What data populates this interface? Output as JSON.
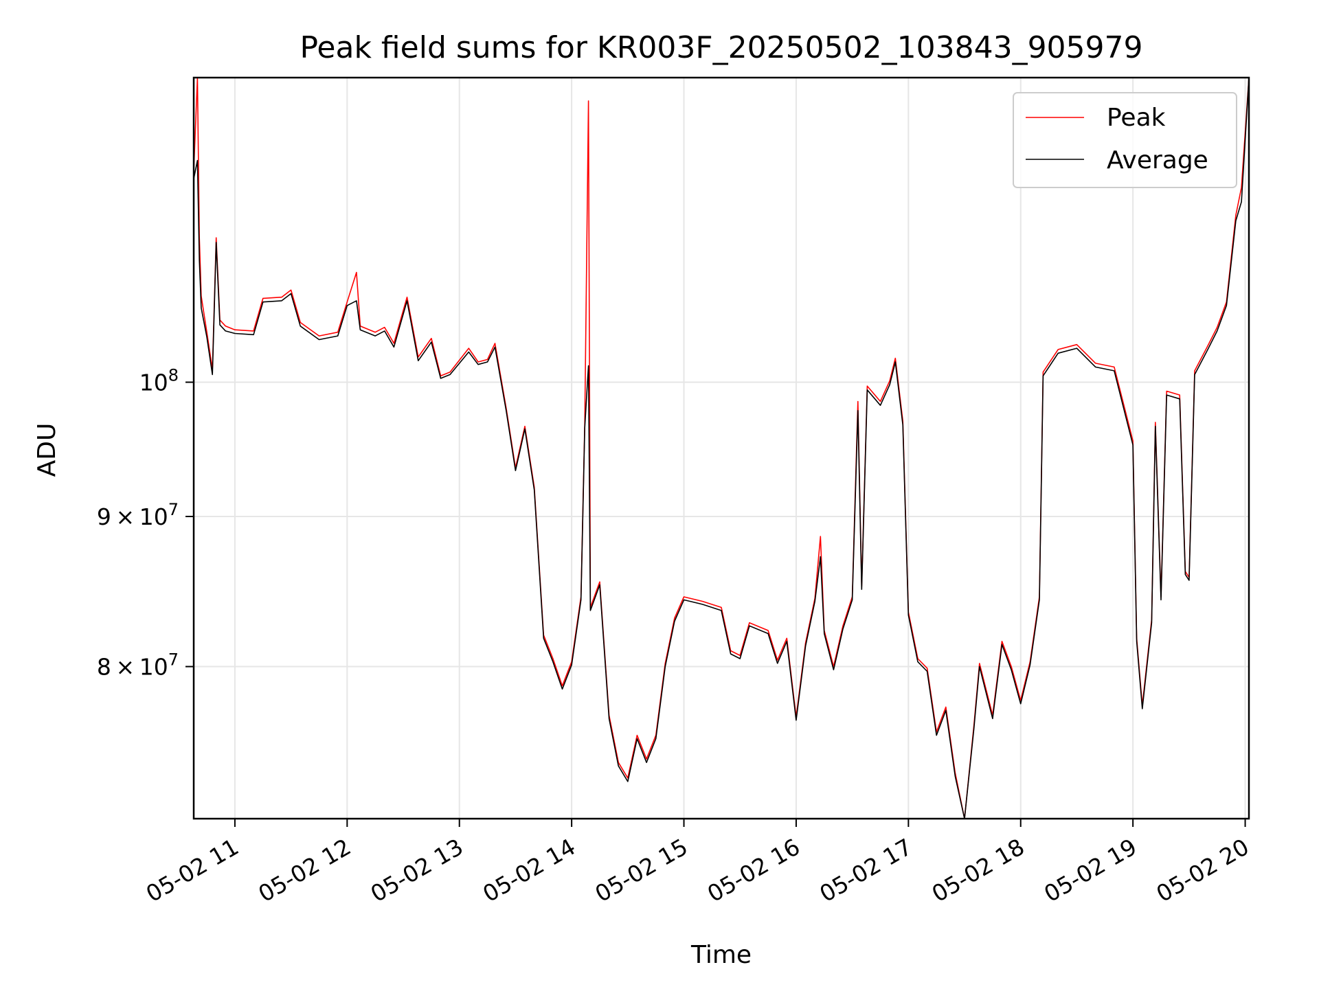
{
  "chart_data": {
    "type": "line",
    "title": "Peak field sums for KR003F_20250502_103843_905979",
    "xlabel": "Time",
    "ylabel": "ADU",
    "yscale": "log",
    "ylim": [
      71000000,
      127000000
    ],
    "xlim": [
      "2025-05-02 10:38",
      "2025-05-02 20:02"
    ],
    "grid": true,
    "legend_position": "top-right",
    "x_ticks": [
      "2025-05-02 11:00",
      "2025-05-02 12:00",
      "2025-05-02 13:00",
      "2025-05-02 14:00",
      "2025-05-02 15:00",
      "2025-05-02 16:00",
      "2025-05-02 17:00",
      "2025-05-02 18:00",
      "2025-05-02 19:00",
      "2025-05-02 20:00"
    ],
    "x_tick_labels": [
      "05-02 11",
      "05-02 12",
      "05-02 13",
      "05-02 14",
      "05-02 15",
      "05-02 16",
      "05-02 17",
      "05-02 18",
      "05-02 19",
      "05-02 20"
    ],
    "y_ticks": [
      {
        "value": 100000000,
        "base": "10",
        "exp": "8",
        "mant": ""
      },
      {
        "value": 90000000,
        "base": "10",
        "exp": "7",
        "mant": "9"
      },
      {
        "value": 80000000,
        "base": "10",
        "exp": "7",
        "mant": "8"
      }
    ],
    "series": [
      {
        "name": "Peak",
        "color": "#ff0000",
        "points": [
          [
            "2025-05-02 10:38",
            118000000
          ],
          [
            "2025-05-02 10:40",
            127000000
          ],
          [
            "2025-05-02 10:41",
            112000000
          ],
          [
            "2025-05-02 10:42",
            107000000
          ],
          [
            "2025-05-02 10:45",
            104000000
          ],
          [
            "2025-05-02 10:48",
            101000000
          ],
          [
            "2025-05-02 10:50",
            112000000
          ],
          [
            "2025-05-02 10:52",
            105000000
          ],
          [
            "2025-05-02 10:55",
            104500000
          ],
          [
            "2025-05-02 11:00",
            104200000
          ],
          [
            "2025-05-02 11:10",
            104100000
          ],
          [
            "2025-05-02 11:15",
            106800000
          ],
          [
            "2025-05-02 11:25",
            106900000
          ],
          [
            "2025-05-02 11:30",
            107500000
          ],
          [
            "2025-05-02 11:35",
            104800000
          ],
          [
            "2025-05-02 11:45",
            103700000
          ],
          [
            "2025-05-02 11:55",
            104000000
          ],
          [
            "2025-05-02 12:00",
            106500000
          ],
          [
            "2025-05-02 12:05",
            109000000
          ],
          [
            "2025-05-02 12:07",
            104500000
          ],
          [
            "2025-05-02 12:15",
            104000000
          ],
          [
            "2025-05-02 12:20",
            104400000
          ],
          [
            "2025-05-02 12:25",
            103100000
          ],
          [
            "2025-05-02 12:32",
            106900000
          ],
          [
            "2025-05-02 12:38",
            102000000
          ],
          [
            "2025-05-02 12:45",
            103500000
          ],
          [
            "2025-05-02 12:50",
            100500000
          ],
          [
            "2025-05-02 12:55",
            100800000
          ],
          [
            "2025-05-02 13:05",
            102700000
          ],
          [
            "2025-05-02 13:10",
            101600000
          ],
          [
            "2025-05-02 13:15",
            101800000
          ],
          [
            "2025-05-02 13:19",
            103100000
          ],
          [
            "2025-05-02 13:25",
            98000000
          ],
          [
            "2025-05-02 13:30",
            93500000
          ],
          [
            "2025-05-02 13:35",
            96600000
          ],
          [
            "2025-05-02 13:40",
            92100000
          ],
          [
            "2025-05-02 13:45",
            82000000
          ],
          [
            "2025-05-02 13:50",
            80500000
          ],
          [
            "2025-05-02 13:55",
            78800000
          ],
          [
            "2025-05-02 14:00",
            80300000
          ],
          [
            "2025-05-02 14:05",
            84500000
          ],
          [
            "2025-05-02 14:07",
            96800000
          ],
          [
            "2025-05-02 14:09",
            124700000
          ],
          [
            "2025-05-02 14:10",
            83800000
          ],
          [
            "2025-05-02 14:15",
            85500000
          ],
          [
            "2025-05-02 14:20",
            77000000
          ],
          [
            "2025-05-02 14:25",
            74200000
          ],
          [
            "2025-05-02 14:30",
            73300000
          ],
          [
            "2025-05-02 14:35",
            75800000
          ],
          [
            "2025-05-02 14:40",
            74400000
          ],
          [
            "2025-05-02 14:45",
            75800000
          ],
          [
            "2025-05-02 14:50",
            80200000
          ],
          [
            "2025-05-02 14:55",
            83100000
          ],
          [
            "2025-05-02 15:00",
            84500000
          ],
          [
            "2025-05-02 15:10",
            84200000
          ],
          [
            "2025-05-02 15:20",
            83800000
          ],
          [
            "2025-05-02 15:25",
            81000000
          ],
          [
            "2025-05-02 15:30",
            80700000
          ],
          [
            "2025-05-02 15:35",
            82800000
          ],
          [
            "2025-05-02 15:45",
            82300000
          ],
          [
            "2025-05-02 15:50",
            80400000
          ],
          [
            "2025-05-02 15:55",
            81800000
          ],
          [
            "2025-05-02 16:00",
            76900000
          ],
          [
            "2025-05-02 16:05",
            81500000
          ],
          [
            "2025-05-02 16:10",
            84400000
          ],
          [
            "2025-05-02 16:13",
            88600000
          ],
          [
            "2025-05-02 16:15",
            82300000
          ],
          [
            "2025-05-02 16:20",
            80000000
          ],
          [
            "2025-05-02 16:25",
            82600000
          ],
          [
            "2025-05-02 16:30",
            84500000
          ],
          [
            "2025-05-02 16:33",
            98500000
          ],
          [
            "2025-05-02 16:35",
            85200000
          ],
          [
            "2025-05-02 16:38",
            99700000
          ],
          [
            "2025-05-02 16:45",
            98500000
          ],
          [
            "2025-05-02 16:50",
            100100000
          ],
          [
            "2025-05-02 16:53",
            101900000
          ],
          [
            "2025-05-02 16:57",
            97000000
          ],
          [
            "2025-05-02 17:00",
            83500000
          ],
          [
            "2025-05-02 17:05",
            80500000
          ],
          [
            "2025-05-02 17:10",
            79900000
          ],
          [
            "2025-05-02 17:15",
            76000000
          ],
          [
            "2025-05-02 17:20",
            77500000
          ],
          [
            "2025-05-02 17:25",
            73600000
          ],
          [
            "2025-05-02 17:30",
            71000000
          ],
          [
            "2025-05-02 17:35",
            76400000
          ],
          [
            "2025-05-02 17:38",
            80200000
          ],
          [
            "2025-05-02 17:45",
            77000000
          ],
          [
            "2025-05-02 17:50",
            81600000
          ],
          [
            "2025-05-02 17:55",
            80000000
          ],
          [
            "2025-05-02 18:00",
            77900000
          ],
          [
            "2025-05-02 18:05",
            80300000
          ],
          [
            "2025-05-02 18:10",
            84500000
          ],
          [
            "2025-05-02 18:12",
            100800000
          ],
          [
            "2025-05-02 18:20",
            102600000
          ],
          [
            "2025-05-02 18:30",
            103000000
          ],
          [
            "2025-05-02 18:40",
            101500000
          ],
          [
            "2025-05-02 18:50",
            101200000
          ],
          [
            "2025-05-02 19:00",
            95500000
          ],
          [
            "2025-05-02 19:02",
            81800000
          ],
          [
            "2025-05-02 19:05",
            77600000
          ],
          [
            "2025-05-02 19:10",
            83000000
          ],
          [
            "2025-05-02 19:12",
            96900000
          ],
          [
            "2025-05-02 19:15",
            84500000
          ],
          [
            "2025-05-02 19:18",
            99300000
          ],
          [
            "2025-05-02 19:25",
            99000000
          ],
          [
            "2025-05-02 19:28",
            86200000
          ],
          [
            "2025-05-02 19:30",
            85800000
          ],
          [
            "2025-05-02 19:33",
            100900000
          ],
          [
            "2025-05-02 19:40",
            102900000
          ],
          [
            "2025-05-02 19:45",
            104400000
          ],
          [
            "2025-05-02 19:50",
            106500000
          ],
          [
            "2025-05-02 19:55",
            114000000
          ],
          [
            "2025-05-02 19:58",
            116500000
          ],
          [
            "2025-05-02 20:02",
            127000000
          ]
        ]
      },
      {
        "name": "Average",
        "color": "#000000",
        "points": [
          [
            "2025-05-02 10:38",
            117300000
          ],
          [
            "2025-05-02 10:40",
            119000000
          ],
          [
            "2025-05-02 10:41",
            110000000
          ],
          [
            "2025-05-02 10:42",
            106000000
          ],
          [
            "2025-05-02 10:45",
            103600000
          ],
          [
            "2025-05-02 10:48",
            100600000
          ],
          [
            "2025-05-02 10:50",
            111600000
          ],
          [
            "2025-05-02 10:52",
            104600000
          ],
          [
            "2025-05-02 10:55",
            104100000
          ],
          [
            "2025-05-02 11:00",
            103900000
          ],
          [
            "2025-05-02 11:10",
            103800000
          ],
          [
            "2025-05-02 11:15",
            106500000
          ],
          [
            "2025-05-02 11:25",
            106600000
          ],
          [
            "2025-05-02 11:30",
            107200000
          ],
          [
            "2025-05-02 11:35",
            104500000
          ],
          [
            "2025-05-02 11:45",
            103400000
          ],
          [
            "2025-05-02 11:55",
            103700000
          ],
          [
            "2025-05-02 12:00",
            106200000
          ],
          [
            "2025-05-02 12:05",
            106600000
          ],
          [
            "2025-05-02 12:07",
            104200000
          ],
          [
            "2025-05-02 12:15",
            103700000
          ],
          [
            "2025-05-02 12:20",
            104100000
          ],
          [
            "2025-05-02 12:25",
            102800000
          ],
          [
            "2025-05-02 12:32",
            106600000
          ],
          [
            "2025-05-02 12:38",
            101700000
          ],
          [
            "2025-05-02 12:45",
            103200000
          ],
          [
            "2025-05-02 12:50",
            100300000
          ],
          [
            "2025-05-02 12:55",
            100600000
          ],
          [
            "2025-05-02 13:05",
            102400000
          ],
          [
            "2025-05-02 13:10",
            101400000
          ],
          [
            "2025-05-02 13:15",
            101600000
          ],
          [
            "2025-05-02 13:19",
            102800000
          ],
          [
            "2025-05-02 13:25",
            97800000
          ],
          [
            "2025-05-02 13:30",
            93300000
          ],
          [
            "2025-05-02 13:35",
            96400000
          ],
          [
            "2025-05-02 13:40",
            91900000
          ],
          [
            "2025-05-02 13:45",
            81800000
          ],
          [
            "2025-05-02 13:50",
            80300000
          ],
          [
            "2025-05-02 13:55",
            78600000
          ],
          [
            "2025-05-02 14:00",
            80100000
          ],
          [
            "2025-05-02 14:05",
            84300000
          ],
          [
            "2025-05-02 14:07",
            96500000
          ],
          [
            "2025-05-02 14:09",
            101300000
          ],
          [
            "2025-05-02 14:10",
            83600000
          ],
          [
            "2025-05-02 14:15",
            85300000
          ],
          [
            "2025-05-02 14:20",
            76800000
          ],
          [
            "2025-05-02 14:25",
            74000000
          ],
          [
            "2025-05-02 14:30",
            73100000
          ],
          [
            "2025-05-02 14:35",
            75600000
          ],
          [
            "2025-05-02 14:40",
            74200000
          ],
          [
            "2025-05-02 14:45",
            75600000
          ],
          [
            "2025-05-02 14:50",
            80000000
          ],
          [
            "2025-05-02 14:55",
            82900000
          ],
          [
            "2025-05-02 15:00",
            84300000
          ],
          [
            "2025-05-02 15:10",
            84000000
          ],
          [
            "2025-05-02 15:20",
            83600000
          ],
          [
            "2025-05-02 15:25",
            80800000
          ],
          [
            "2025-05-02 15:30",
            80500000
          ],
          [
            "2025-05-02 15:35",
            82600000
          ],
          [
            "2025-05-02 15:45",
            82100000
          ],
          [
            "2025-05-02 15:50",
            80200000
          ],
          [
            "2025-05-02 15:55",
            81600000
          ],
          [
            "2025-05-02 16:00",
            76700000
          ],
          [
            "2025-05-02 16:05",
            81300000
          ],
          [
            "2025-05-02 16:10",
            84200000
          ],
          [
            "2025-05-02 16:13",
            87200000
          ],
          [
            "2025-05-02 16:15",
            82100000
          ],
          [
            "2025-05-02 16:20",
            79800000
          ],
          [
            "2025-05-02 16:25",
            82400000
          ],
          [
            "2025-05-02 16:30",
            84300000
          ],
          [
            "2025-05-02 16:33",
            97800000
          ],
          [
            "2025-05-02 16:35",
            85000000
          ],
          [
            "2025-05-02 16:38",
            99400000
          ],
          [
            "2025-05-02 16:45",
            98200000
          ],
          [
            "2025-05-02 16:50",
            99800000
          ],
          [
            "2025-05-02 16:53",
            101600000
          ],
          [
            "2025-05-02 16:57",
            96700000
          ],
          [
            "2025-05-02 17:00",
            83300000
          ],
          [
            "2025-05-02 17:05",
            80300000
          ],
          [
            "2025-05-02 17:10",
            79700000
          ],
          [
            "2025-05-02 17:15",
            75800000
          ],
          [
            "2025-05-02 17:20",
            77300000
          ],
          [
            "2025-05-02 17:25",
            73400000
          ],
          [
            "2025-05-02 17:30",
            71000000
          ],
          [
            "2025-05-02 17:35",
            76200000
          ],
          [
            "2025-05-02 17:38",
            80000000
          ],
          [
            "2025-05-02 17:45",
            76800000
          ],
          [
            "2025-05-02 17:50",
            81400000
          ],
          [
            "2025-05-02 17:55",
            79800000
          ],
          [
            "2025-05-02 18:00",
            77700000
          ],
          [
            "2025-05-02 18:05",
            80100000
          ],
          [
            "2025-05-02 18:10",
            84300000
          ],
          [
            "2025-05-02 18:12",
            100500000
          ],
          [
            "2025-05-02 18:20",
            102300000
          ],
          [
            "2025-05-02 18:30",
            102700000
          ],
          [
            "2025-05-02 18:40",
            101200000
          ],
          [
            "2025-05-02 18:50",
            100900000
          ],
          [
            "2025-05-02 19:00",
            95200000
          ],
          [
            "2025-05-02 19:02",
            81600000
          ],
          [
            "2025-05-02 19:05",
            77400000
          ],
          [
            "2025-05-02 19:10",
            82800000
          ],
          [
            "2025-05-02 19:12",
            96600000
          ],
          [
            "2025-05-02 19:15",
            84300000
          ],
          [
            "2025-05-02 19:18",
            99000000
          ],
          [
            "2025-05-02 19:25",
            98700000
          ],
          [
            "2025-05-02 19:28",
            86000000
          ],
          [
            "2025-05-02 19:30",
            85600000
          ],
          [
            "2025-05-02 19:33",
            100600000
          ],
          [
            "2025-05-02 19:40",
            102600000
          ],
          [
            "2025-05-02 19:45",
            104100000
          ],
          [
            "2025-05-02 19:50",
            106200000
          ],
          [
            "2025-05-02 19:55",
            113500000
          ],
          [
            "2025-05-02 19:58",
            115200000
          ],
          [
            "2025-05-02 20:02",
            127000000
          ]
        ]
      }
    ]
  }
}
